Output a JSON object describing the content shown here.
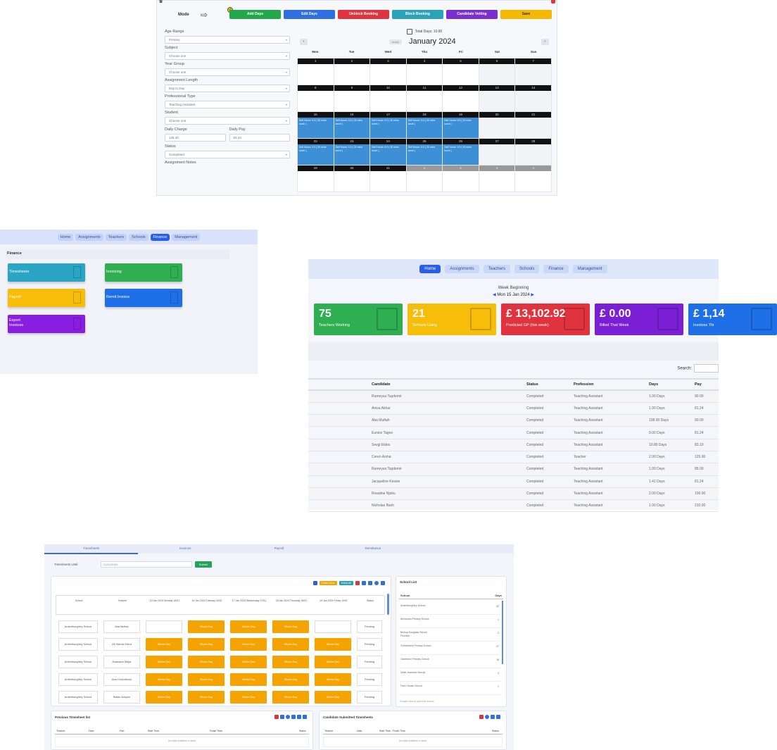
{
  "calendar_panel": {
    "mode_label": "Mode",
    "mode_buttons": [
      {
        "label": "Add Days",
        "color": "#22a84a"
      },
      {
        "label": "Edit Days",
        "color": "#2f6fe0"
      },
      {
        "label": "Unblock Booking",
        "color": "#e0333d"
      },
      {
        "label": "Block Booking",
        "color": "#2aa2b8"
      },
      {
        "label": "Candidate Vetting",
        "color": "#7a2fd0"
      },
      {
        "label": "Save",
        "color": "#f5b800"
      }
    ],
    "form": {
      "age_range_label": "Age Range",
      "age_range_value": "Primary",
      "subject_label": "Subject",
      "subject_value": "Choose one",
      "year_group_label": "Year Group",
      "year_group_value": "Choose one",
      "assignment_length_label": "Assignment Length",
      "assignment_length_value": "Day to Day",
      "professional_type_label": "Professional Type",
      "professional_type_value": "Teaching Assistant",
      "student_label": "Student",
      "student_value": "Choose one",
      "daily_charge_label": "Daily Charge",
      "daily_charge_value": "136.30",
      "daily_pay_label": "Daily Pay",
      "daily_pay_value": "83.10",
      "status_label": "Status",
      "status_value": "Completed",
      "assignment_notes_label": "Assignment Notes"
    },
    "total_days": "Total Days: 10.80",
    "today_label": "today",
    "month_title": "January 2024",
    "weekdays": [
      "Mon",
      "Tue",
      "Wed",
      "Thu",
      "Fri",
      "Sat",
      "Sun"
    ],
    "event_text": "Self Hours: 9.0 ( 30 mins lunch )",
    "weeks": [
      [
        {
          "d": "1"
        },
        {
          "d": "2"
        },
        {
          "d": "3"
        },
        {
          "d": "4"
        },
        {
          "d": "5"
        },
        {
          "d": "6",
          "we": true
        },
        {
          "d": "7",
          "we": true
        }
      ],
      [
        {
          "d": "8"
        },
        {
          "d": "9"
        },
        {
          "d": "10"
        },
        {
          "d": "11"
        },
        {
          "d": "12"
        },
        {
          "d": "13",
          "we": true
        },
        {
          "d": "14",
          "we": true
        }
      ],
      [
        {
          "d": "15",
          "ev": true
        },
        {
          "d": "16",
          "ev": true
        },
        {
          "d": "17",
          "ev": true
        },
        {
          "d": "18",
          "ev": true
        },
        {
          "d": "19",
          "ev": true
        },
        {
          "d": "20",
          "we": true
        },
        {
          "d": "21",
          "we": true
        }
      ],
      [
        {
          "d": "22",
          "ev": true
        },
        {
          "d": "23",
          "ev": true
        },
        {
          "d": "24",
          "ev": true
        },
        {
          "d": "25",
          "ev": true
        },
        {
          "d": "26",
          "ev": true
        },
        {
          "d": "27",
          "we": true
        },
        {
          "d": "28",
          "we": true
        }
      ],
      [
        {
          "d": "29"
        },
        {
          "d": "30"
        },
        {
          "d": "31"
        },
        {
          "d": "1",
          "o": true
        },
        {
          "d": "2",
          "o": true
        },
        {
          "d": "3",
          "o": true
        },
        {
          "d": "4",
          "o": true
        }
      ]
    ]
  },
  "finance_panel": {
    "nav": [
      "Home",
      "Assignments",
      "Teachers",
      "Schools",
      "Finance",
      "Management"
    ],
    "active_nav": "Finance",
    "title": "Finance",
    "cards": [
      {
        "label": "Timesheets",
        "color": "#2aa6c4"
      },
      {
        "label": "Invoicing",
        "color": "#2fae52"
      },
      {
        "label": "Payroll",
        "color": "#f6bd0a"
      },
      {
        "label": "Remit Invoice",
        "color": "#1f6fe6"
      },
      {
        "label": "Export Invoices",
        "color": "#8a1ee0"
      }
    ]
  },
  "dashboard_panel": {
    "nav": [
      "Home",
      "Assignments",
      "Teachers",
      "Schools",
      "Finance",
      "Management"
    ],
    "active_nav": "Home",
    "week_beginning_label": "Week Beginning",
    "week_date": "Mon 15 Jan 2024",
    "stats": [
      {
        "value": "75",
        "label": "Teachers Working",
        "color": "#2fae52"
      },
      {
        "value": "21",
        "label": "Schools Using",
        "color": "#f6bd0a"
      },
      {
        "value": "£ 13,102.92",
        "label": "Predicted GP (this week)",
        "color": "#e0333d"
      },
      {
        "value": "£ 0.00",
        "label": "Billed That Week",
        "color": "#7a1fd6"
      },
      {
        "value": "£ 1,14",
        "label": "Invoices Thi",
        "color": "#1f6fe6"
      }
    ],
    "search_label": "Search:",
    "columns": [
      "Candidate",
      "Status",
      "Profession",
      "Days",
      "Pay"
    ],
    "rows": [
      [
        "Rumeysa Taşdemir",
        "Completed",
        "Teaching Assistant",
        "1.00 Days",
        "90.00"
      ],
      [
        "Anisa Akhar",
        "Completed",
        "Teaching Assistant",
        "1.00 Days",
        "81.24"
      ],
      [
        "Aba Muftah",
        "Completed",
        "Teaching Assistant",
        "108.00 Days",
        "90.00"
      ],
      [
        "Eunice Tagoe",
        "Completed",
        "Teaching Assistant",
        "9.00 Days",
        "81.24"
      ],
      [
        "Sevgi Eldes",
        "Completed",
        "Teaching Assistant",
        "10.80 Days",
        "83.10"
      ],
      [
        "Ceren Asma",
        "Completed",
        "Teacher",
        "2.00 Days",
        "125.00"
      ],
      [
        "Rumeysa Taşdemir",
        "Completed",
        "Teaching Assistant",
        "1.00 Days",
        "85.00"
      ],
      [
        "Jacqueline Kessie",
        "Completed",
        "Teaching Assistant",
        "1.41 Days",
        "81.24"
      ],
      [
        "Rosaline Njoku",
        "Completed",
        "Teaching Assistant",
        "2.00 Days",
        "100.00"
      ],
      [
        "Nicholas Bash",
        "Completed",
        "Teaching Assistant",
        "1.00 Days",
        "210.00"
      ]
    ]
  },
  "timesheet_panel": {
    "tabs": [
      "Timesheets",
      "Invoices",
      "Payroll",
      "Remittance",
      ""
    ],
    "until_label": "Timesheets Until",
    "until_value": "21/01/2024",
    "submit_label": "Submit",
    "toolbar_pills": [
      "Select None",
      "Select All"
    ],
    "grid_headers": [
      "School",
      "Teacher",
      "15 Jan 2024 Monday 15/01",
      "16 Jan 2024 Tuesday 16/01",
      "17 Jan 2024 Wednesday 17/01",
      "18 Jan 2024 Thursday 18/01",
      "19 Jan 2024 Friday 19/01",
      "Status"
    ],
    "whole_day": "Whole Day",
    "grid_rows": [
      {
        "school": "Ardenthurghley School",
        "teacher": "Aba Muftah",
        "days": [
          false,
          true,
          true,
          true,
          false
        ],
        "status": "Pending"
      },
      {
        "school": "Ardenthurghley School",
        "teacher": "Ali Hamza Mirza",
        "days": [
          true,
          true,
          true,
          true,
          true
        ],
        "status": "Pending"
      },
      {
        "school": "Ardenthurghley School",
        "teacher": "Anamaria Stejar",
        "days": [
          true,
          true,
          true,
          true,
          true
        ],
        "status": "Pending"
      },
      {
        "school": "Ardenthurghley School",
        "teacher": "Anis Kouzoblous",
        "days": [
          true,
          true,
          true,
          true,
          true
        ],
        "status": "Pending"
      },
      {
        "school": "Ardenthurghley School",
        "teacher": "Balkin Adoyun",
        "days": [
          true,
          true,
          true,
          true,
          true
        ],
        "status": "Pending"
      }
    ],
    "school_list_title": "School List",
    "school_list_headers": [
      "School",
      "Days"
    ],
    "school_list": [
      {
        "name": "Ardenthurghley School",
        "days": "42"
      },
      {
        "name": "Alexandra Primary School",
        "days": "1"
      },
      {
        "name": "Bishop Douglass School Finchley",
        "days": "2"
      },
      {
        "name": "Chesterfield Primary School",
        "days": "27"
      },
      {
        "name": "Clarendon Primary School",
        "days": "16"
      },
      {
        "name": "Dubb Jeannine Morrye",
        "days": "2"
      },
      {
        "name": "Farm House School",
        "days": "1"
      }
    ],
    "school_list_hint": "Double click to open the school",
    "previous_title": "Previous Timesheet list",
    "previous_headers": [
      "Teacher",
      "Date",
      "Part",
      "Start Time",
      "Finish Time",
      "Status"
    ],
    "submitted_title": "Candidate Submitted Timesheets",
    "submitted_headers": [
      "Teacher",
      "Date",
      "Start Time - Finish Time",
      "Status"
    ],
    "empty_text": "No data available in table"
  }
}
